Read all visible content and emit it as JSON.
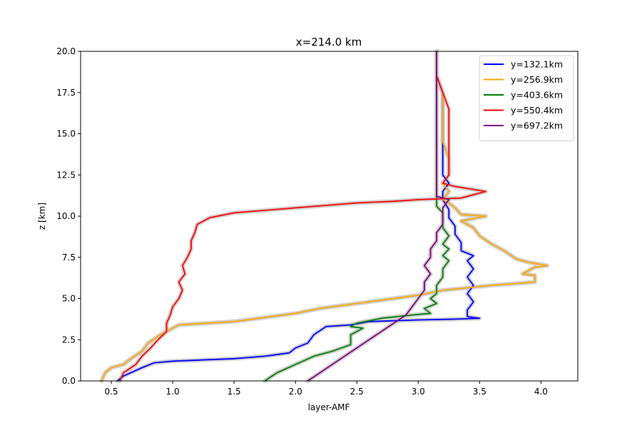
{
  "chart_data": {
    "type": "line",
    "title": "x=214.0 km",
    "xlabel": "layer-AMF",
    "ylabel": "z [km]",
    "xlim": [
      0.25,
      4.3
    ],
    "ylim": [
      0,
      20
    ],
    "x_ticks": [
      0.5,
      1.0,
      1.5,
      2.0,
      2.5,
      3.0,
      3.5,
      4.0
    ],
    "x_tick_labels": [
      "0.5",
      "1.0",
      "1.5",
      "2.0",
      "2.5",
      "3.0",
      "3.5",
      "4.0"
    ],
    "y_ticks": [
      0,
      2.5,
      5,
      7.5,
      10,
      12.5,
      15,
      17.5,
      20
    ],
    "y_tick_labels": [
      "0.0",
      "2.5",
      "5.0",
      "7.5",
      "10.0",
      "12.5",
      "15.0",
      "17.5",
      "20.0"
    ],
    "grid": false,
    "legend_position": "top-right",
    "uncertainty_band_color": "#c8c8c8",
    "series": [
      {
        "name": "y=132.1km",
        "color": "#0000ff",
        "points": [
          [
            0.55,
            0
          ],
          [
            0.6,
            0.3
          ],
          [
            0.75,
            0.8
          ],
          [
            0.85,
            1.1
          ],
          [
            1.0,
            1.2
          ],
          [
            1.5,
            1.35
          ],
          [
            1.75,
            1.5
          ],
          [
            1.95,
            1.7
          ],
          [
            2.0,
            2.0
          ],
          [
            2.1,
            2.3
          ],
          [
            2.15,
            2.8
          ],
          [
            2.25,
            3.3
          ],
          [
            2.45,
            3.4
          ],
          [
            2.6,
            3.6
          ],
          [
            3.0,
            3.7
          ],
          [
            3.3,
            3.75
          ],
          [
            3.5,
            3.8
          ],
          [
            3.4,
            3.9
          ],
          [
            3.4,
            4.3
          ],
          [
            3.45,
            4.8
          ],
          [
            3.4,
            5.3
          ],
          [
            3.45,
            5.8
          ],
          [
            3.4,
            6.3
          ],
          [
            3.45,
            6.8
          ],
          [
            3.4,
            7.3
          ],
          [
            3.45,
            7.6
          ],
          [
            3.35,
            7.9
          ],
          [
            3.35,
            8.4
          ],
          [
            3.3,
            8.9
          ],
          [
            3.3,
            9.4
          ],
          [
            3.25,
            9.9
          ],
          [
            3.25,
            10.4
          ],
          [
            3.2,
            11.0
          ],
          [
            3.2,
            11.5
          ],
          [
            3.25,
            12.0
          ],
          [
            3.2,
            12.5
          ],
          [
            3.2,
            13.5
          ],
          [
            3.2,
            14.5
          ],
          [
            3.2,
            15.5
          ],
          [
            3.2,
            16.5
          ],
          [
            3.2,
            17.5
          ],
          [
            3.15,
            18.5
          ],
          [
            3.15,
            20
          ]
        ]
      },
      {
        "name": "y=256.9km",
        "color": "#ffa500",
        "points": [
          [
            0.42,
            0
          ],
          [
            0.45,
            0.5
          ],
          [
            0.5,
            0.8
          ],
          [
            0.6,
            1.0
          ],
          [
            0.65,
            1.3
          ],
          [
            0.75,
            1.8
          ],
          [
            0.8,
            2.3
          ],
          [
            0.9,
            2.8
          ],
          [
            0.95,
            3.0
          ],
          [
            1.05,
            3.4
          ],
          [
            1.5,
            3.6
          ],
          [
            2.0,
            4.1
          ],
          [
            2.2,
            4.4
          ],
          [
            2.6,
            4.8
          ],
          [
            2.8,
            5.0
          ],
          [
            3.0,
            5.2
          ],
          [
            3.2,
            5.5
          ],
          [
            3.6,
            5.8
          ],
          [
            3.95,
            6.0
          ],
          [
            3.95,
            6.4
          ],
          [
            3.85,
            6.5
          ],
          [
            3.95,
            6.9
          ],
          [
            4.05,
            7.0
          ],
          [
            3.9,
            7.2
          ],
          [
            3.8,
            7.4
          ],
          [
            3.7,
            7.9
          ],
          [
            3.6,
            8.3
          ],
          [
            3.5,
            8.8
          ],
          [
            3.45,
            9.3
          ],
          [
            3.35,
            9.7
          ],
          [
            3.55,
            10.0
          ],
          [
            3.35,
            10.1
          ],
          [
            3.3,
            10.5
          ],
          [
            3.25,
            10.8
          ],
          [
            3.2,
            11.0
          ],
          [
            3.25,
            11.5
          ],
          [
            3.2,
            12.0
          ],
          [
            3.25,
            12.5
          ],
          [
            3.25,
            13.5
          ],
          [
            3.2,
            14.5
          ],
          [
            3.2,
            15.5
          ],
          [
            3.2,
            16.5
          ],
          [
            3.2,
            17.5
          ],
          [
            3.15,
            18.5
          ],
          [
            3.15,
            20
          ]
        ]
      },
      {
        "name": "y=403.6km",
        "color": "#008000",
        "points": [
          [
            1.75,
            0
          ],
          [
            1.85,
            0.5
          ],
          [
            2.0,
            1.0
          ],
          [
            2.15,
            1.5
          ],
          [
            2.3,
            1.8
          ],
          [
            2.45,
            2.2
          ],
          [
            2.45,
            2.5
          ],
          [
            2.45,
            2.8
          ],
          [
            2.55,
            3.2
          ],
          [
            2.45,
            3.3
          ],
          [
            2.5,
            3.5
          ],
          [
            2.7,
            3.8
          ],
          [
            2.95,
            4.0
          ],
          [
            3.1,
            4.1
          ],
          [
            3.05,
            4.4
          ],
          [
            3.15,
            4.7
          ],
          [
            3.1,
            5.0
          ],
          [
            3.15,
            5.3
          ],
          [
            3.15,
            5.8
          ],
          [
            3.2,
            6.3
          ],
          [
            3.2,
            6.8
          ],
          [
            3.25,
            7.3
          ],
          [
            3.2,
            7.6
          ],
          [
            3.25,
            8.0
          ],
          [
            3.2,
            8.3
          ],
          [
            3.25,
            8.8
          ],
          [
            3.2,
            9.3
          ],
          [
            3.2,
            9.8
          ],
          [
            3.2,
            10.2
          ],
          [
            3.15,
            10.6
          ],
          [
            3.15,
            11.0
          ],
          [
            3.15,
            11.5
          ],
          [
            3.15,
            12.0
          ],
          [
            3.15,
            12.5
          ],
          [
            3.15,
            13.5
          ],
          [
            3.15,
            14.5
          ],
          [
            3.15,
            15.5
          ],
          [
            3.15,
            16.5
          ],
          [
            3.15,
            17.5
          ],
          [
            3.15,
            18.5
          ],
          [
            3.15,
            20
          ]
        ]
      },
      {
        "name": "y=550.4km",
        "color": "#ff0000",
        "points": [
          [
            0.57,
            0
          ],
          [
            0.6,
            0.5
          ],
          [
            0.7,
            1.0
          ],
          [
            0.75,
            1.5
          ],
          [
            0.82,
            2.0
          ],
          [
            0.88,
            2.5
          ],
          [
            0.95,
            3.0
          ],
          [
            0.95,
            3.5
          ],
          [
            0.98,
            4.0
          ],
          [
            1.0,
            4.5
          ],
          [
            1.05,
            5.0
          ],
          [
            1.08,
            5.5
          ],
          [
            1.05,
            6.0
          ],
          [
            1.1,
            6.5
          ],
          [
            1.08,
            7.0
          ],
          [
            1.12,
            7.5
          ],
          [
            1.15,
            8.0
          ],
          [
            1.15,
            8.5
          ],
          [
            1.18,
            9.0
          ],
          [
            1.2,
            9.5
          ],
          [
            1.3,
            9.9
          ],
          [
            1.5,
            10.2
          ],
          [
            2.0,
            10.5
          ],
          [
            2.5,
            10.8
          ],
          [
            2.8,
            10.9
          ],
          [
            3.0,
            11.0
          ],
          [
            3.35,
            11.1
          ],
          [
            3.55,
            11.5
          ],
          [
            3.3,
            11.8
          ],
          [
            3.2,
            12.0
          ],
          [
            3.25,
            12.5
          ],
          [
            3.25,
            13.5
          ],
          [
            3.25,
            14.5
          ],
          [
            3.25,
            15.5
          ],
          [
            3.25,
            16.5
          ],
          [
            3.2,
            17.5
          ],
          [
            3.15,
            18.5
          ],
          [
            3.15,
            20
          ]
        ]
      },
      {
        "name": "y=697.2km",
        "color": "#800080",
        "points": [
          [
            2.1,
            0
          ],
          [
            2.2,
            0.5
          ],
          [
            2.3,
            1.0
          ],
          [
            2.4,
            1.5
          ],
          [
            2.5,
            2.0
          ],
          [
            2.6,
            2.5
          ],
          [
            2.7,
            3.0
          ],
          [
            2.8,
            3.5
          ],
          [
            2.9,
            4.0
          ],
          [
            2.95,
            4.5
          ],
          [
            3.0,
            5.0
          ],
          [
            3.05,
            5.5
          ],
          [
            3.05,
            6.0
          ],
          [
            3.1,
            6.5
          ],
          [
            3.05,
            7.0
          ],
          [
            3.1,
            7.5
          ],
          [
            3.1,
            8.0
          ],
          [
            3.15,
            8.5
          ],
          [
            3.15,
            9.0
          ],
          [
            3.2,
            9.5
          ],
          [
            3.2,
            10.0
          ],
          [
            3.2,
            10.5
          ],
          [
            3.25,
            11.0
          ],
          [
            3.15,
            11.2
          ],
          [
            3.15,
            11.6
          ],
          [
            3.15,
            12.0
          ],
          [
            3.15,
            12.5
          ],
          [
            3.15,
            13.5
          ],
          [
            3.15,
            14.5
          ],
          [
            3.15,
            15.5
          ],
          [
            3.15,
            16.5
          ],
          [
            3.15,
            17.5
          ],
          [
            3.15,
            18.5
          ],
          [
            3.15,
            20
          ]
        ]
      }
    ]
  }
}
